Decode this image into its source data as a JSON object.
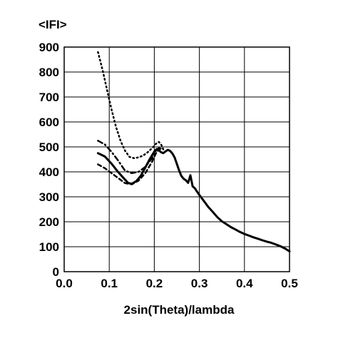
{
  "chart_data": {
    "type": "line",
    "title": "",
    "ylabel": "<IFI>",
    "xlabel": "2sin(Theta)/lambda",
    "xlim": [
      0.0,
      0.5
    ],
    "ylim": [
      0,
      900
    ],
    "x_ticks": [
      0.0,
      0.1,
      0.2,
      0.3,
      0.4,
      0.5
    ],
    "x_tick_labels": [
      "0.0",
      "0.1",
      "0.2",
      "0.3",
      "0.4",
      "0.5"
    ],
    "y_ticks": [
      0,
      100,
      200,
      300,
      400,
      500,
      600,
      700,
      800,
      900
    ],
    "y_tick_labels": [
      "0",
      "100",
      "200",
      "300",
      "400",
      "500",
      "600",
      "700",
      "800",
      "900"
    ],
    "grid": true,
    "legend": "none",
    "series": [
      {
        "style": "solid",
        "x": [
          0.075,
          0.09,
          0.105,
          0.12,
          0.135,
          0.142,
          0.15,
          0.16,
          0.17,
          0.18,
          0.19,
          0.2,
          0.205,
          0.21,
          0.215,
          0.22,
          0.225,
          0.23,
          0.235,
          0.24,
          0.245,
          0.25,
          0.255,
          0.26,
          0.265,
          0.27,
          0.275,
          0.28,
          0.285,
          0.29,
          0.295,
          0.3,
          0.31,
          0.32,
          0.33,
          0.34,
          0.35,
          0.36,
          0.37,
          0.38,
          0.39,
          0.4,
          0.41,
          0.42,
          0.43,
          0.44,
          0.45,
          0.46,
          0.47,
          0.48,
          0.49,
          0.5
        ],
        "y": [
          475,
          460,
          430,
          395,
          365,
          352,
          350,
          362,
          385,
          420,
          455,
          485,
          495,
          490,
          480,
          475,
          480,
          485,
          480,
          470,
          455,
          430,
          405,
          385,
          375,
          370,
          360,
          390,
          345,
          335,
          320,
          305,
          280,
          255,
          235,
          215,
          200,
          190,
          180,
          172,
          163,
          155,
          148,
          140,
          133,
          125,
          118,
          112,
          105,
          98,
          90,
          80
        ]
      },
      {
        "style": "dotted",
        "x": [
          0.075,
          0.085,
          0.095,
          0.105,
          0.115,
          0.125,
          0.135,
          0.145,
          0.155,
          0.165,
          0.175,
          0.185,
          0.195,
          0.205,
          0.21,
          0.215,
          0.22
        ],
        "y": [
          880,
          810,
          730,
          650,
          580,
          525,
          485,
          460,
          455,
          458,
          465,
          478,
          495,
          515,
          520,
          510,
          490
        ]
      },
      {
        "style": "dash-dot",
        "x": [
          0.075,
          0.09,
          0.105,
          0.12,
          0.135,
          0.15,
          0.165,
          0.18,
          0.195,
          0.205,
          0.215
        ],
        "y": [
          525,
          510,
          480,
          445,
          405,
          395,
          400,
          420,
          455,
          490,
          500
        ]
      },
      {
        "style": "dashed",
        "x": [
          0.075,
          0.09,
          0.105,
          0.12,
          0.135,
          0.15,
          0.165,
          0.18,
          0.195,
          0.205,
          0.215
        ],
        "y": [
          430,
          415,
          395,
          375,
          355,
          350,
          365,
          395,
          440,
          480,
          495
        ]
      }
    ]
  }
}
